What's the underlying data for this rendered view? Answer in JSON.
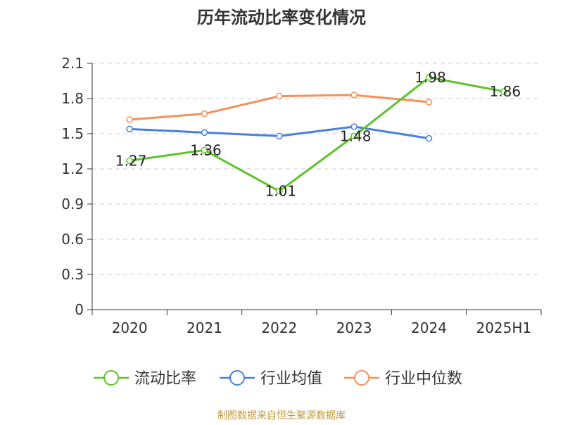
{
  "chart_data": {
    "type": "line",
    "title": "历年流动比率变化情况",
    "categories": [
      "2020",
      "2021",
      "2022",
      "2023",
      "2024",
      "2025H1"
    ],
    "ylim": [
      0,
      2.1
    ],
    "yticks": [
      "0",
      "0.3",
      "0.6",
      "0.9",
      "1.2",
      "1.5",
      "1.8",
      "2.1"
    ],
    "grid": true,
    "legend_position": "bottom",
    "series": [
      {
        "name": "流动比率",
        "color": "#5dc32b",
        "values": [
          1.27,
          1.36,
          1.01,
          1.48,
          1.98,
          1.86
        ],
        "labels": [
          "1.27",
          "1.36",
          "1.01",
          "1.48",
          "1.98",
          "1.86"
        ],
        "show_labels": true
      },
      {
        "name": "行业均值",
        "color": "#4a7fe0",
        "values": [
          1.54,
          1.51,
          1.48,
          1.56,
          1.46,
          null
        ],
        "show_labels": false
      },
      {
        "name": "行业中位数",
        "color": "#f5905a",
        "values": [
          1.62,
          1.67,
          1.82,
          1.83,
          1.77,
          null
        ],
        "show_labels": false
      }
    ]
  },
  "footer": {
    "source": "制图数据来自恒生聚源数据库",
    "color": "#c29a3e"
  }
}
